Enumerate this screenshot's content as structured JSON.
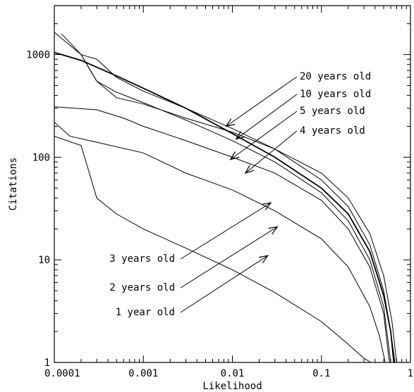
{
  "chart_data": {
    "type": "line",
    "xlabel": "Likelihood",
    "ylabel": "Citations",
    "xscale": "log",
    "yscale": "log",
    "xlim": [
      0.0001,
      1
    ],
    "ylim": [
      1,
      3000
    ],
    "x_ticks": [
      {
        "value": 0.0001,
        "label": "0.0001"
      },
      {
        "value": 0.001,
        "label": "0.001"
      },
      {
        "value": 0.01,
        "label": "0.01"
      },
      {
        "value": 0.1,
        "label": "0.1"
      },
      {
        "value": 1,
        "label": "1"
      }
    ],
    "y_ticks": [
      {
        "value": 1,
        "label": "1"
      },
      {
        "value": 10,
        "label": "10"
      },
      {
        "value": 100,
        "label": "100"
      },
      {
        "value": 1000,
        "label": "1000"
      }
    ],
    "grid": false,
    "series": [
      {
        "x": [
          0.0001,
          0.0002,
          0.0003,
          0.0005,
          0.001,
          0.003,
          0.01,
          0.03,
          0.1,
          0.2,
          0.35,
          0.5,
          0.62,
          0.7
        ],
        "y": [
          1650,
          1000,
          550,
          380,
          330,
          240,
          175,
          120,
          70,
          40,
          18,
          7,
          2.5,
          1
        ]
      },
      {
        "x": [
          0.00012,
          0.0002,
          0.0003,
          0.0005,
          0.001,
          0.003,
          0.01,
          0.03,
          0.1,
          0.2,
          0.35,
          0.5,
          0.6,
          0.67
        ],
        "y": [
          1600,
          1000,
          900,
          600,
          440,
          300,
          190,
          120,
          60,
          33,
          14,
          5,
          2,
          1
        ]
      },
      {
        "x": [
          0.0001,
          0.0002,
          0.0005,
          0.001,
          0.003,
          0.01,
          0.03,
          0.1,
          0.2,
          0.35,
          0.5,
          0.6,
          0.65
        ],
        "y": [
          1050,
          880,
          620,
          470,
          300,
          170,
          100,
          50,
          28,
          12,
          4.5,
          2,
          1
        ]
      },
      {
        "x": [
          0.0002,
          0.0003,
          0.0005,
          0.001,
          0.003,
          0.01,
          0.03,
          0.1,
          0.2,
          0.35,
          0.5,
          0.6
        ],
        "y": [
          1000,
          550,
          430,
          340,
          230,
          145,
          90,
          45,
          24,
          10,
          3.5,
          1
        ]
      },
      {
        "x": [
          0.0001,
          0.0003,
          0.0006,
          0.001,
          0.003,
          0.01,
          0.03,
          0.1,
          0.2,
          0.35,
          0.5,
          0.58
        ],
        "y": [
          310,
          290,
          240,
          200,
          145,
          100,
          70,
          38,
          20,
          8.5,
          3,
          1
        ]
      },
      {
        "x": [
          0.0001,
          0.00015,
          0.0003,
          0.001,
          0.003,
          0.01,
          0.03,
          0.1,
          0.2,
          0.35,
          0.45,
          0.52
        ],
        "y": [
          220,
          160,
          140,
          110,
          70,
          48,
          30,
          16,
          8.5,
          3.5,
          1.8,
          1
        ]
      },
      {
        "x": [
          0.0001,
          0.0002,
          0.0003,
          0.0005,
          0.001,
          0.003,
          0.01,
          0.03,
          0.1,
          0.2,
          0.3,
          0.36
        ],
        "y": [
          160,
          130,
          40,
          28,
          20,
          13,
          8,
          4.8,
          2.5,
          1.5,
          1.1,
          1
        ]
      }
    ],
    "annotations": [
      {
        "text": "20 years old",
        "arrow_to": [
          0.0085,
          200
        ]
      },
      {
        "text": "10 years old",
        "arrow_to": [
          0.011,
          150
        ]
      },
      {
        "text": "5 years old",
        "arrow_to": [
          0.0095,
          95
        ]
      },
      {
        "text": "4 years old",
        "arrow_to": [
          0.014,
          70
        ]
      },
      {
        "text": "3 years old",
        "arrow_to": [
          0.027,
          36
        ]
      },
      {
        "text": "2 years old",
        "arrow_to": [
          0.032,
          21
        ]
      },
      {
        "text": "1 year old",
        "arrow_to": [
          0.025,
          11
        ]
      }
    ]
  }
}
